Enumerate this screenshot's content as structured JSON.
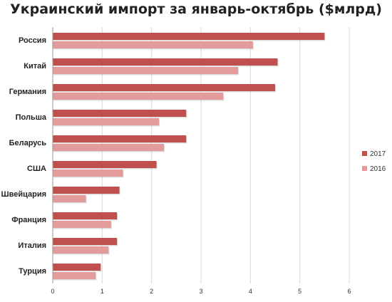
{
  "chart_data": {
    "type": "bar",
    "orientation": "horizontal",
    "title": "Украинский импорт за январь-октябрь ($млрд)",
    "categories": [
      "Россия",
      "Китай",
      "Германия",
      "Польша",
      "Беларусь",
      "США",
      "Швейцария",
      "Франция",
      "Италия",
      "Турция"
    ],
    "series": [
      {
        "name": "2017",
        "color": "#c0504d",
        "values": [
          5.5,
          4.55,
          4.5,
          2.7,
          2.7,
          2.1,
          1.35,
          1.3,
          1.3,
          0.97
        ]
      },
      {
        "name": "2016",
        "color": "#e39b9b",
        "values": [
          4.05,
          3.75,
          3.45,
          2.15,
          2.25,
          1.42,
          0.67,
          1.18,
          1.13,
          0.87
        ]
      }
    ],
    "xlim": [
      0,
      6
    ],
    "xticks": [
      "0",
      "1",
      "2",
      "3",
      "4",
      "5",
      "6"
    ],
    "grid": "vertical",
    "legend": "right"
  }
}
